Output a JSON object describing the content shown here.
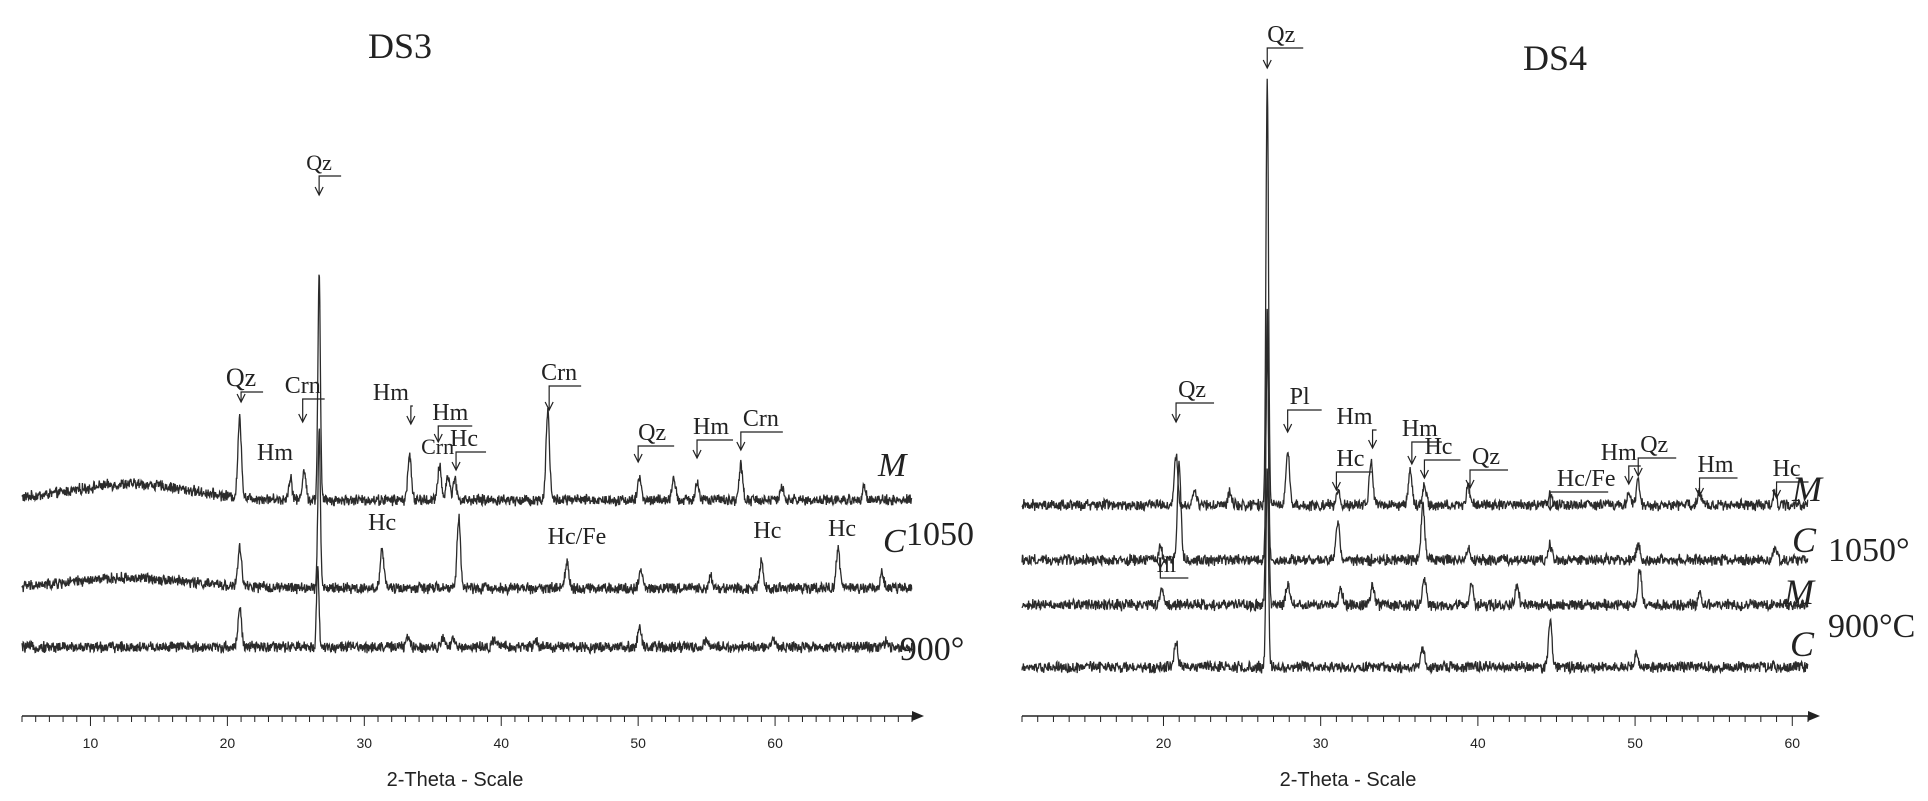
{
  "chart_data": [
    {
      "type": "line",
      "title": "DS3",
      "xlabel": "2-Theta - Scale",
      "xlim": [
        5,
        70
      ],
      "xticks": [
        10,
        20,
        30,
        40,
        50,
        60
      ],
      "grid": false,
      "series": [
        {
          "name": "M",
          "temperature_label": "1050",
          "peaks": [
            {
              "two_theta": 20.9,
              "height": 80
            },
            {
              "two_theta": 24.6,
              "height": 22
            },
            {
              "two_theta": 25.6,
              "height": 30
            },
            {
              "two_theta": 26.7,
              "height": 230
            },
            {
              "two_theta": 33.3,
              "height": 45
            },
            {
              "two_theta": 35.5,
              "height": 35
            },
            {
              "two_theta": 36.1,
              "height": 25
            },
            {
              "two_theta": 36.6,
              "height": 22
            },
            {
              "two_theta": 43.4,
              "height": 90
            },
            {
              "two_theta": 50.1,
              "height": 22
            },
            {
              "two_theta": 52.6,
              "height": 20
            },
            {
              "two_theta": 54.3,
              "height": 18
            },
            {
              "two_theta": 57.5,
              "height": 35
            },
            {
              "two_theta": 60.5,
              "height": 12
            },
            {
              "two_theta": 66.5,
              "height": 15
            }
          ],
          "hump": {
            "center": 13,
            "height": 16
          },
          "annotations": [
            "Qz",
            "Hm",
            "Crn",
            "Qz",
            "Hm",
            "Crn",
            "Hm",
            "Hc",
            "Crn",
            "Qz",
            "Hm",
            "Crn"
          ]
        },
        {
          "name": "C",
          "temperature_label": "1050",
          "peaks": [
            {
              "two_theta": 20.9,
              "height": 40
            },
            {
              "two_theta": 26.7,
              "height": 160
            },
            {
              "two_theta": 31.3,
              "height": 40
            },
            {
              "two_theta": 36.9,
              "height": 70
            },
            {
              "two_theta": 44.8,
              "height": 28
            },
            {
              "two_theta": 50.2,
              "height": 18
            },
            {
              "two_theta": 55.3,
              "height": 12
            },
            {
              "two_theta": 59.0,
              "height": 28
            },
            {
              "two_theta": 64.6,
              "height": 40
            },
            {
              "two_theta": 67.8,
              "height": 15
            }
          ],
          "hump": {
            "center": 13,
            "height": 10
          },
          "annotations": [
            "Hc",
            "Hc/Fe",
            "Hc",
            "Hc"
          ]
        },
        {
          "name": "",
          "temperature_label": "900°",
          "peaks": [
            {
              "two_theta": 20.9,
              "height": 40
            },
            {
              "two_theta": 26.6,
              "height": 80
            },
            {
              "two_theta": 33.2,
              "height": 10
            },
            {
              "two_theta": 35.7,
              "height": 10
            },
            {
              "two_theta": 36.5,
              "height": 8
            },
            {
              "two_theta": 39.5,
              "height": 8
            },
            {
              "two_theta": 42.5,
              "height": 7
            },
            {
              "two_theta": 50.1,
              "height": 18
            },
            {
              "two_theta": 54.9,
              "height": 7
            },
            {
              "two_theta": 59.9,
              "height": 8
            },
            {
              "two_theta": 68.1,
              "height": 6
            }
          ]
        }
      ],
      "peak_labels": [
        {
          "text": "Qz",
          "two_theta": 26.7
        },
        {
          "text": "Qz",
          "two_theta": 21.0
        },
        {
          "text": "Crn",
          "two_theta": 25.5
        },
        {
          "text": "Hm",
          "two_theta": 24.5
        },
        {
          "text": "Hm",
          "two_theta": 33.4
        },
        {
          "text": "Hm",
          "two_theta": 35.4
        },
        {
          "text": "Crn",
          "two_theta": 35.5
        },
        {
          "text": "Hc",
          "two_theta": 36.7
        },
        {
          "text": "Crn",
          "two_theta": 43.5
        },
        {
          "text": "Qz",
          "two_theta": 50.0
        },
        {
          "text": "Hm",
          "two_theta": 54.3
        },
        {
          "text": "Crn",
          "two_theta": 57.5
        },
        {
          "text": "Hc",
          "two_theta": 31.3
        },
        {
          "text": "Hc/Fe",
          "two_theta": 44.8
        },
        {
          "text": "Hc",
          "two_theta": 59.0
        },
        {
          "text": "Hc",
          "two_theta": 64.6
        }
      ]
    },
    {
      "type": "line",
      "title": "DS4",
      "xlabel": "2-Theta - Scale",
      "xlim": [
        11,
        61
      ],
      "xticks": [
        20,
        30,
        40,
        50,
        60
      ],
      "grid": false,
      "series": [
        {
          "name": "M",
          "temperature_label": "1050°",
          "peaks": [
            {
              "two_theta": 20.8,
              "height": 50
            },
            {
              "two_theta": 22.0,
              "height": 15
            },
            {
              "two_theta": 24.2,
              "height": 12
            },
            {
              "two_theta": 26.6,
              "height": 430
            },
            {
              "two_theta": 27.9,
              "height": 55
            },
            {
              "two_theta": 31.1,
              "height": 15
            },
            {
              "two_theta": 33.2,
              "height": 45
            },
            {
              "two_theta": 35.7,
              "height": 35
            },
            {
              "two_theta": 36.6,
              "height": 20
            },
            {
              "two_theta": 39.4,
              "height": 18
            },
            {
              "two_theta": 44.6,
              "height": 12
            },
            {
              "two_theta": 49.6,
              "height": 12
            },
            {
              "two_theta": 50.2,
              "height": 25
            },
            {
              "two_theta": 54.1,
              "height": 15
            },
            {
              "two_theta": 58.9,
              "height": 12
            }
          ]
        },
        {
          "name": "C",
          "temperature_label": "1050°",
          "peaks": [
            {
              "two_theta": 19.8,
              "height": 12
            },
            {
              "two_theta": 21.0,
              "height": 95
            },
            {
              "two_theta": 26.6,
              "height": 220
            },
            {
              "two_theta": 31.1,
              "height": 40
            },
            {
              "two_theta": 36.5,
              "height": 55
            },
            {
              "two_theta": 39.4,
              "height": 12
            },
            {
              "two_theta": 44.6,
              "height": 15
            },
            {
              "two_theta": 50.2,
              "height": 15
            },
            {
              "two_theta": 58.9,
              "height": 12
            }
          ]
        },
        {
          "name": "M",
          "temperature_label": "900°C",
          "peaks": [
            {
              "two_theta": 19.9,
              "height": 15
            },
            {
              "two_theta": 26.6,
              "height": 300
            },
            {
              "two_theta": 27.9,
              "height": 20
            },
            {
              "two_theta": 31.3,
              "height": 15
            },
            {
              "two_theta": 33.3,
              "height": 18
            },
            {
              "two_theta": 36.6,
              "height": 25
            },
            {
              "two_theta": 39.6,
              "height": 22
            },
            {
              "two_theta": 42.5,
              "height": 18
            },
            {
              "two_theta": 50.3,
              "height": 35
            },
            {
              "two_theta": 54.1,
              "height": 12
            }
          ]
        },
        {
          "name": "C",
          "temperature_label": "900°C",
          "peaks": [
            {
              "two_theta": 20.8,
              "height": 25
            },
            {
              "two_theta": 26.6,
              "height": 200
            },
            {
              "two_theta": 36.5,
              "height": 20
            },
            {
              "two_theta": 44.6,
              "height": 45
            },
            {
              "two_theta": 50.1,
              "height": 12
            }
          ]
        }
      ],
      "peak_labels": [
        {
          "text": "Qz",
          "two_theta": 26.6
        },
        {
          "text": "Qz",
          "two_theta": 20.8
        },
        {
          "text": "Pl",
          "two_theta": 27.9
        },
        {
          "text": "Hm",
          "two_theta": 33.3
        },
        {
          "text": "Hc",
          "two_theta": 31.0
        },
        {
          "text": "Hm",
          "two_theta": 35.8
        },
        {
          "text": "Hc",
          "two_theta": 36.6
        },
        {
          "text": "Qz",
          "two_theta": 39.5
        },
        {
          "text": "Hc/Fe",
          "two_theta": 44.6
        },
        {
          "text": "Hm",
          "two_theta": 49.6
        },
        {
          "text": "Qz",
          "two_theta": 50.2
        },
        {
          "text": "Hm",
          "two_theta": 54.1
        },
        {
          "text": "Hc",
          "two_theta": 59.0
        },
        {
          "text": "Ill",
          "two_theta": 19.8
        }
      ]
    }
  ],
  "colors": {
    "trace": "#2b2b2b",
    "text": "#222222",
    "background": "#ffffff"
  }
}
